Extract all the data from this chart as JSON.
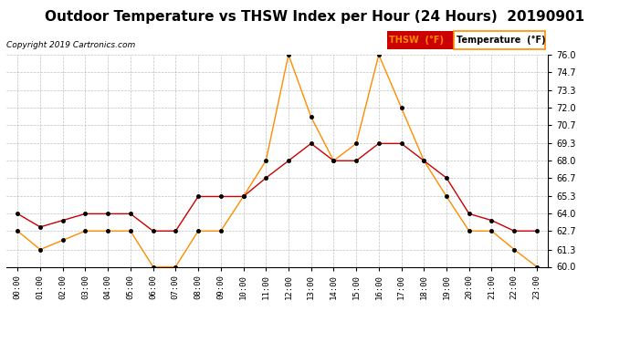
{
  "title": "Outdoor Temperature vs THSW Index per Hour (24 Hours)  20190901",
  "copyright": "Copyright 2019 Cartronics.com",
  "hours": [
    "00:00",
    "01:00",
    "02:00",
    "03:00",
    "04:00",
    "05:00",
    "06:00",
    "07:00",
    "08:00",
    "09:00",
    "10:00",
    "11:00",
    "12:00",
    "13:00",
    "14:00",
    "15:00",
    "16:00",
    "17:00",
    "18:00",
    "19:00",
    "20:00",
    "21:00",
    "22:00",
    "23:00"
  ],
  "temperature": [
    64.0,
    63.0,
    63.5,
    64.0,
    64.0,
    64.0,
    62.7,
    62.7,
    65.3,
    65.3,
    65.3,
    66.7,
    68.0,
    69.3,
    68.0,
    68.0,
    69.3,
    69.3,
    68.0,
    66.7,
    64.0,
    63.5,
    62.7,
    62.7
  ],
  "thsw": [
    62.7,
    61.3,
    62.0,
    62.7,
    62.7,
    62.7,
    60.0,
    60.0,
    62.7,
    62.7,
    65.3,
    68.0,
    76.0,
    71.3,
    68.0,
    69.3,
    76.0,
    72.0,
    68.0,
    65.3,
    62.7,
    62.7,
    61.3,
    60.0
  ],
  "temp_color": "#cc0000",
  "thsw_color": "#ff8c00",
  "ylim_min": 60.0,
  "ylim_max": 76.0,
  "yticks": [
    60.0,
    61.3,
    62.7,
    64.0,
    65.3,
    66.7,
    68.0,
    69.3,
    70.7,
    72.0,
    73.3,
    74.7,
    76.0
  ],
  "background_color": "#ffffff",
  "plot_bg_color": "#ffffff",
  "grid_color": "#b0b0b0",
  "title_fontsize": 11,
  "marker_color": "black",
  "marker_size": 3
}
